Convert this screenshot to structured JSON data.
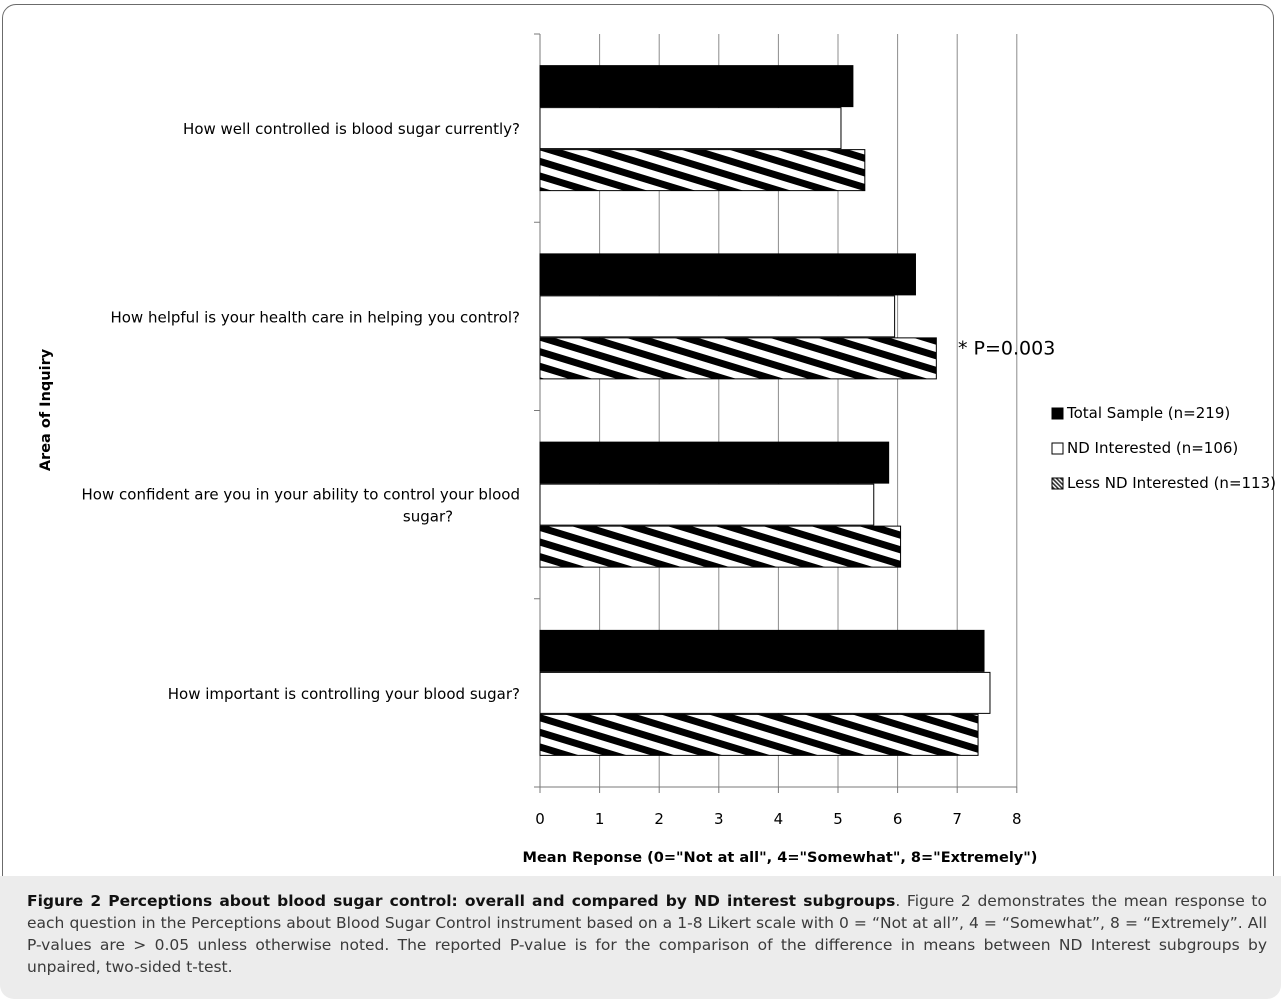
{
  "chart_data": {
    "type": "bar",
    "orientation": "horizontal",
    "categories": [
      "How well controlled is blood sugar currently?",
      "How helpful is your health care in helping you control?",
      "How confident are you in your ability to control your blood sugar?",
      "How important is controlling your blood sugar?"
    ],
    "category_lines": [
      [
        "How well controlled is blood sugar currently?"
      ],
      [
        "How helpful is your health care in helping you control?"
      ],
      [
        "How confident are you in your ability to control your blood",
        "sugar?"
      ],
      [
        "How important is controlling your blood sugar?"
      ]
    ],
    "series": [
      {
        "name": "Total Sample (n=219)",
        "values": [
          5.25,
          6.3,
          5.85,
          7.45
        ],
        "fill": "solid-black"
      },
      {
        "name": "ND Interested (n=106)",
        "values": [
          5.05,
          5.95,
          5.6,
          7.55
        ],
        "fill": "white"
      },
      {
        "name": "Less ND Interested (n=113)",
        "values": [
          5.45,
          6.65,
          6.05,
          7.35
        ],
        "fill": "diagonal-stripes"
      }
    ],
    "xlabel": "Mean Reponse (0=\"Not at all\", 4=\"Somewhat\", 8=\"Extremely\")",
    "ylabel": "Area of Inquiry",
    "xlim": [
      0,
      8
    ],
    "xticks": [
      "0",
      "1",
      "2",
      "3",
      "4",
      "5",
      "6",
      "7",
      "8"
    ],
    "grid": true,
    "legend_position": "right",
    "annotations": [
      {
        "text": "* P=0.003",
        "category_index": 1
      }
    ]
  },
  "caption": {
    "label": "Figure 2 Perceptions about blood sugar control: overall and compared by ND interest subgroups",
    "text": ". Figure 2 demonstrates the mean response to each question in the Perceptions about Blood Sugar Control instrument based on a 1-8 Likert scale with 0 = “Not at all”, 4 = “Somewhat”, 8 = “Extremely”. All P-values are > 0.05 unless otherwise noted. The reported P-value is for the comparison of the difference in means between ND Interest subgroups by unpaired, two-sided t-test."
  },
  "colors": {
    "bar_dark": "#000000",
    "bar_light": "#ffffff",
    "grid": "#8c8c8c",
    "caption_bg": "#ececec"
  }
}
